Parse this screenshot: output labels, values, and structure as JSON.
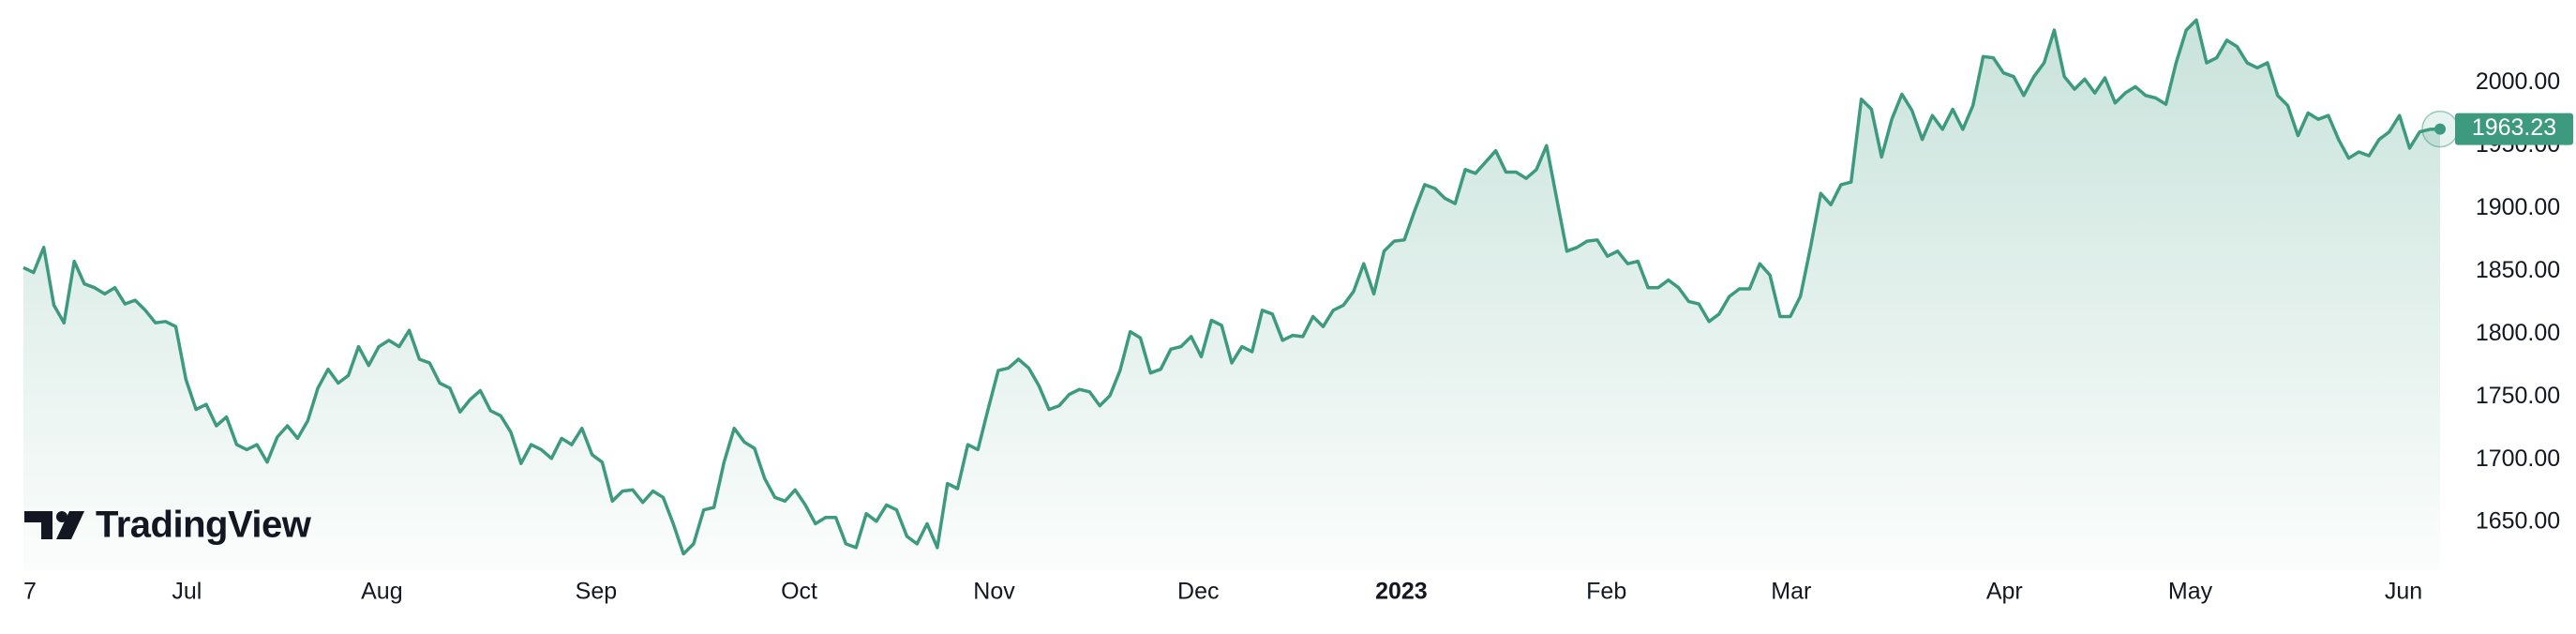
{
  "chart_data": {
    "type": "area",
    "brand": "TradingView",
    "series": [
      {
        "color": "#3d9a7e",
        "values": [
          1853,
          1849,
          1869,
          1823,
          1809,
          1858,
          1840,
          1837,
          1832,
          1837,
          1824,
          1827,
          1819,
          1809,
          1810,
          1806,
          1764,
          1740,
          1744,
          1727,
          1734,
          1712,
          1708,
          1712,
          1698,
          1718,
          1727,
          1717,
          1731,
          1757,
          1772,
          1761,
          1767,
          1790,
          1775,
          1790,
          1795,
          1790,
          1803,
          1780,
          1777,
          1761,
          1757,
          1738,
          1748,
          1755,
          1739,
          1735,
          1722,
          1697,
          1712,
          1708,
          1701,
          1717,
          1712,
          1725,
          1704,
          1698,
          1667,
          1675,
          1676,
          1666,
          1675,
          1670,
          1649,
          1625,
          1633,
          1660,
          1662,
          1698,
          1725,
          1714,
          1709,
          1685,
          1670,
          1667,
          1676,
          1664,
          1649,
          1654,
          1654,
          1633,
          1630,
          1657,
          1651,
          1664,
          1660,
          1639,
          1633,
          1649,
          1630,
          1681,
          1677,
          1712,
          1708,
          1740,
          1771,
          1773,
          1780,
          1773,
          1759,
          1740,
          1743,
          1752,
          1756,
          1754,
          1743,
          1751,
          1771,
          1802,
          1797,
          1769,
          1772,
          1788,
          1790,
          1798,
          1782,
          1811,
          1807,
          1777,
          1790,
          1786,
          1819,
          1816,
          1795,
          1799,
          1798,
          1814,
          1806,
          1819,
          1823,
          1834,
          1856,
          1832,
          1866,
          1874,
          1875,
          1898,
          1919,
          1916,
          1908,
          1904,
          1931,
          1928,
          1937,
          1946,
          1929,
          1929,
          1924,
          1931,
          1950,
          1908,
          1866,
          1869,
          1874,
          1875,
          1862,
          1866,
          1856,
          1858,
          1837,
          1837,
          1843,
          1837,
          1826,
          1824,
          1810,
          1816,
          1830,
          1836,
          1836,
          1856,
          1847,
          1814,
          1814,
          1830,
          1869,
          1912,
          1903,
          1919,
          1921,
          1987,
          1979,
          1941,
          1971,
          1991,
          1978,
          1955,
          1974,
          1963,
          1979,
          1963,
          1982,
          2021,
          2020,
          2008,
          2005,
          1990,
          2005,
          2016,
          2042,
          2005,
          1995,
          2003,
          1992,
          2004,
          1984,
          1992,
          1997,
          1990,
          1988,
          1983,
          2016,
          2042,
          2050,
          2016,
          2020,
          2034,
          2029,
          2016,
          2012,
          2016,
          1990,
          1982,
          1958,
          1976,
          1971,
          1974,
          1955,
          1940,
          1945,
          1942,
          1955,
          1961,
          1974,
          1948,
          1961,
          1963,
          1963.23
        ]
      }
    ],
    "xlim": [
      0,
      238
    ],
    "xticks": [
      {
        "value": 0,
        "label": "7"
      },
      {
        "value": 16.1,
        "label": "Jul"
      },
      {
        "value": 35.3,
        "label": "Aug"
      },
      {
        "value": 56.4,
        "label": "Sep"
      },
      {
        "value": 76.4,
        "label": "Oct"
      },
      {
        "value": 95.6,
        "label": "Nov"
      },
      {
        "value": 115.7,
        "label": "Dec"
      },
      {
        "value": 135.7,
        "label": "2023"
      },
      {
        "value": 155.9,
        "label": "Feb"
      },
      {
        "value": 174.1,
        "label": "Mar"
      },
      {
        "value": 195.1,
        "label": "Apr"
      },
      {
        "value": 213.4,
        "label": "May"
      },
      {
        "value": 234.4,
        "label": "Jun"
      }
    ],
    "ylim": [
      1612,
      2066
    ],
    "yticks": [
      {
        "value": 1650,
        "label": "1650.00"
      },
      {
        "value": 1700,
        "label": "1700.00"
      },
      {
        "value": 1750,
        "label": "1750.00"
      },
      {
        "value": 1800,
        "label": "1800.00"
      },
      {
        "value": 1850,
        "label": "1850.00"
      },
      {
        "value": 1900,
        "label": "1900.00"
      },
      {
        "value": 1950,
        "label": "1950.00"
      },
      {
        "value": 2000,
        "label": "2000.00"
      }
    ]
  }
}
